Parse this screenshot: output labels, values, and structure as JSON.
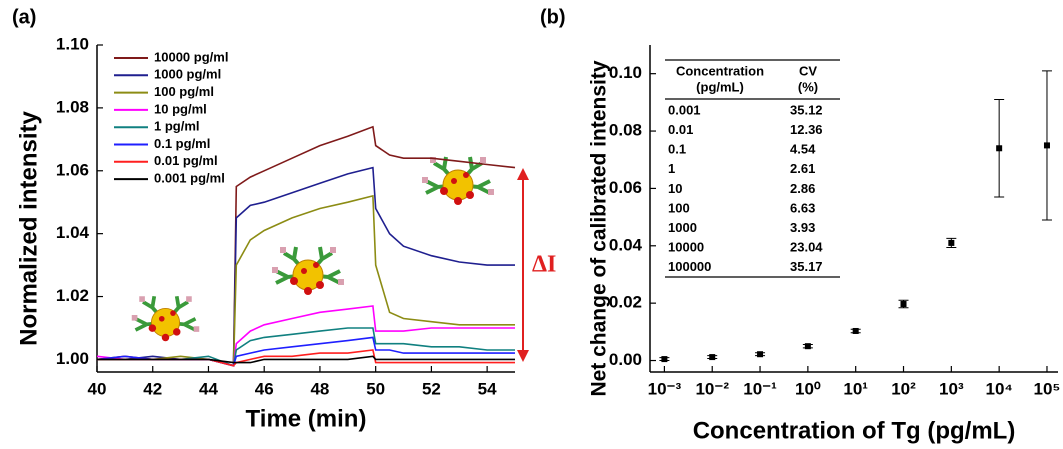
{
  "chart_data": [
    {
      "type": "line",
      "panel_label": "(a)",
      "x_label": "Time (min)",
      "y_label": "Normalized intensity",
      "annotation": "ΔI",
      "xlim": [
        40,
        55
      ],
      "xticks": [
        40,
        42,
        44,
        46,
        48,
        50,
        52,
        54
      ],
      "ylim": [
        0.996,
        1.1
      ],
      "yticks": [
        {
          "value": 1.0,
          "label": "1.00"
        },
        1.02,
        1.04,
        1.06,
        1.08,
        {
          "value": 1.1,
          "label": "1.10"
        }
      ],
      "grid": false,
      "legend": "upper-left",
      "x": [
        40,
        41,
        42,
        43,
        44,
        44.9,
        45,
        45.5,
        46,
        47,
        48,
        49,
        49.9,
        50,
        50.5,
        51,
        52,
        53,
        54,
        55
      ],
      "series": [
        {
          "name": "10000 pg/ml",
          "color": "#7f1a1a",
          "values": [
            1.0,
            1.001,
            1.0,
            1.0,
            1.0,
            0.998,
            1.055,
            1.058,
            1.06,
            1.064,
            1.068,
            1.071,
            1.074,
            1.068,
            1.065,
            1.064,
            1.064,
            1.063,
            1.062,
            1.061
          ]
        },
        {
          "name": "1000 pg/ml",
          "color": "#1f1f8f",
          "values": [
            1.0,
            1.0,
            1.001,
            1.0,
            1.0,
            0.998,
            1.045,
            1.049,
            1.05,
            1.053,
            1.056,
            1.059,
            1.061,
            1.048,
            1.04,
            1.036,
            1.033,
            1.031,
            1.03,
            1.03
          ]
        },
        {
          "name": "100 pg/ml",
          "color": "#8c8c14",
          "values": [
            1.0,
            1.0,
            1.0,
            1.001,
            1.0,
            0.998,
            1.03,
            1.038,
            1.041,
            1.045,
            1.048,
            1.05,
            1.052,
            1.03,
            1.015,
            1.013,
            1.012,
            1.011,
            1.011,
            1.011
          ]
        },
        {
          "name": "10 pg/ml",
          "color": "#ff00ff",
          "values": [
            1.001,
            1.0,
            1.0,
            1.0,
            1.0,
            0.998,
            1.005,
            1.009,
            1.011,
            1.013,
            1.015,
            1.016,
            1.017,
            1.009,
            1.009,
            1.009,
            1.01,
            1.01,
            1.01,
            1.01
          ]
        },
        {
          "name": "1 pg/ml",
          "color": "#108080",
          "values": [
            1.0,
            1.0,
            1.0,
            1.0,
            1.001,
            0.998,
            1.003,
            1.006,
            1.007,
            1.008,
            1.009,
            1.01,
            1.01,
            1.005,
            1.005,
            1.005,
            1.004,
            1.004,
            1.003,
            1.003
          ]
        },
        {
          "name": "0.1 pg/ml",
          "color": "#1f1fff",
          "values": [
            1.0,
            1.001,
            1.0,
            1.0,
            1.0,
            0.998,
            1.001,
            1.002,
            1.003,
            1.004,
            1.005,
            1.006,
            1.007,
            1.003,
            1.003,
            1.002,
            1.002,
            1.002,
            1.002,
            1.002
          ]
        },
        {
          "name": "0.01 pg/ml",
          "color": "#ff1f1f",
          "values": [
            1.0,
            1.0,
            1.0,
            1.0,
            1.0,
            0.998,
            0.999,
            1.0,
            1.001,
            1.001,
            1.002,
            1.002,
            1.003,
            0.999,
            0.999,
            0.999,
            0.999,
            0.999,
            0.999,
            0.999
          ]
        },
        {
          "name": "0.001 pg/ml",
          "color": "#000000",
          "values": [
            1.0,
            1.0,
            1.0,
            1.0,
            1.0,
            0.999,
            0.999,
            0.999,
            1.0,
            1.0,
            1.0,
            1.0,
            1.001,
            1.0,
            1.0,
            1.0,
            1.0,
            1.0,
            1.0,
            1.0
          ]
        }
      ]
    },
    {
      "type": "scatter",
      "panel_label": "(b)",
      "x_label": "Concentration of Tg (pg/mL)",
      "y_label": "Net change of calibrated intensity",
      "log_x": true,
      "xlim": [
        0.0005,
        170000
      ],
      "xticks": [
        {
          "value": 0.001,
          "label": "10⁻³"
        },
        {
          "value": 0.01,
          "label": "10⁻²"
        },
        {
          "value": 0.1,
          "label": "10⁻¹"
        },
        {
          "value": 1,
          "label": "10⁰"
        },
        {
          "value": 10,
          "label": "10¹"
        },
        {
          "value": 100,
          "label": "10²"
        },
        {
          "value": 1000,
          "label": "10³"
        },
        {
          "value": 10000,
          "label": "10⁴"
        },
        {
          "value": 100000,
          "label": "10⁵"
        }
      ],
      "ylim": [
        -0.004,
        0.11
      ],
      "yticks": [
        {
          "value": 0.0,
          "label": "0.00"
        },
        0.02,
        0.04,
        0.06,
        0.08,
        {
          "value": 0.1,
          "label": "0.10"
        }
      ],
      "grid": false,
      "color": "#000000",
      "x": [
        0.001,
        0.01,
        0.1,
        1,
        10,
        100,
        1000,
        10000,
        100000
      ],
      "values": [
        0.0005,
        0.0012,
        0.0022,
        0.005,
        0.0103,
        0.0197,
        0.041,
        0.074,
        0.075
      ],
      "errors": [
        0.0005,
        0.0005,
        0.0005,
        0.0006,
        0.0006,
        0.0013,
        0.0016,
        0.017,
        0.026
      ],
      "table": {
        "header": [
          [
            "Concentration",
            "(pg/mL)"
          ],
          [
            "CV",
            "(%)"
          ]
        ],
        "rows": [
          [
            "0.001",
            "35.12"
          ],
          [
            "0.01",
            "12.36"
          ],
          [
            "0.1",
            "4.54"
          ],
          [
            "1",
            "2.61"
          ],
          [
            "10",
            "2.86"
          ],
          [
            "100",
            "6.63"
          ],
          [
            "1000",
            "3.93"
          ],
          [
            "10000",
            "23.04"
          ],
          [
            "100000",
            "35.17"
          ]
        ]
      }
    }
  ]
}
